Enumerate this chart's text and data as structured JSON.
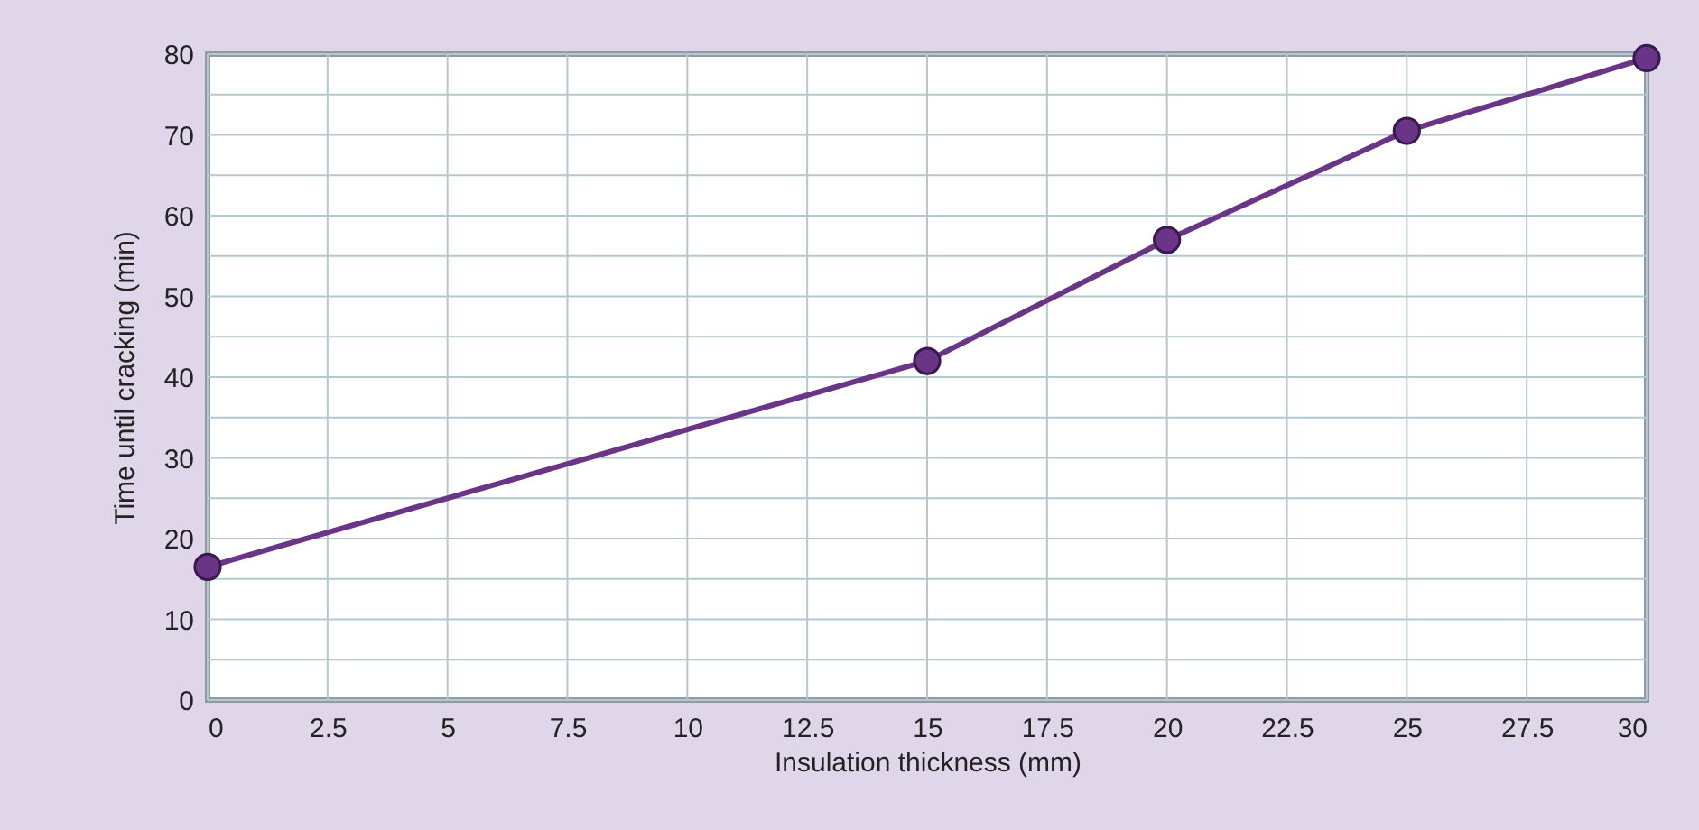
{
  "chart_data": {
    "type": "line",
    "xlabel": "Insulation thickness (mm)",
    "ylabel": "Time until cracking (min)",
    "x": [
      0,
      15,
      20,
      25,
      30
    ],
    "series": [
      {
        "color": "#6a3587",
        "values": [
          16.5,
          42,
          57,
          70.5,
          79.5
        ]
      }
    ],
    "xlim": [
      0,
      30
    ],
    "xticks": [
      0,
      2.5,
      5,
      7.5,
      10,
      12.5,
      15,
      17.5,
      20,
      22.5,
      25,
      27.5,
      30
    ],
    "ylim": [
      0,
      80
    ],
    "yticks": [
      0,
      {
        "value": 5,
        "label": null
      },
      10,
      {
        "value": 15,
        "label": null
      },
      20,
      {
        "value": 25,
        "label": null
      },
      30,
      {
        "value": 35,
        "label": null
      },
      40,
      {
        "value": 45,
        "label": null
      },
      50,
      {
        "value": 55,
        "label": null
      },
      60,
      {
        "value": 65,
        "label": null
      },
      70,
      {
        "value": 75,
        "label": null
      },
      80
    ],
    "grid": true,
    "marker": "circle",
    "line_style": "solid"
  }
}
